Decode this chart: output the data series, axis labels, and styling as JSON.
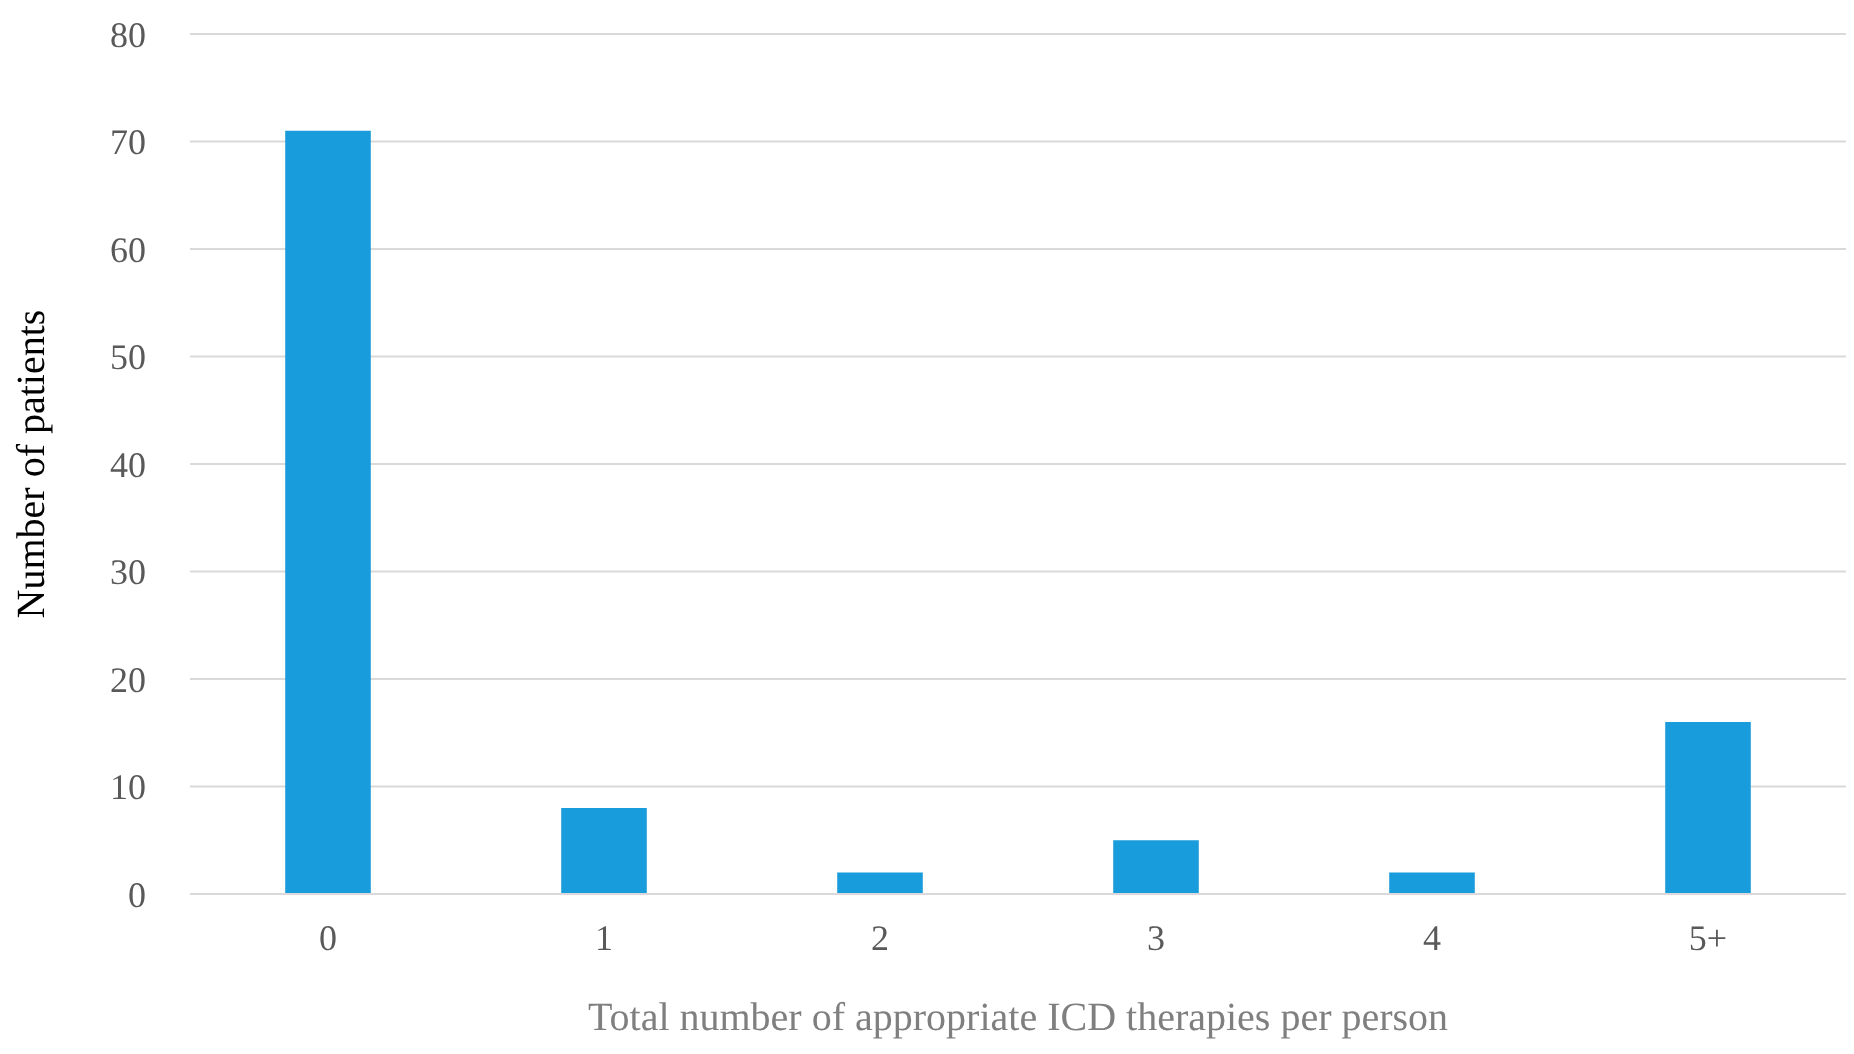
{
  "chart_data": {
    "type": "bar",
    "xlabel": "Total number of appropriate ICD therapies per person",
    "ylabel": "Number of patients",
    "categories": [
      "0",
      "1",
      "2",
      "3",
      "4",
      "5+"
    ],
    "values": [
      71,
      8,
      2,
      5,
      2,
      16
    ],
    "color": "#189cdb",
    "ylim": [
      0,
      80
    ],
    "yticks": [
      0,
      10,
      20,
      30,
      40,
      50,
      60,
      70,
      80
    ],
    "grid": "y"
  }
}
